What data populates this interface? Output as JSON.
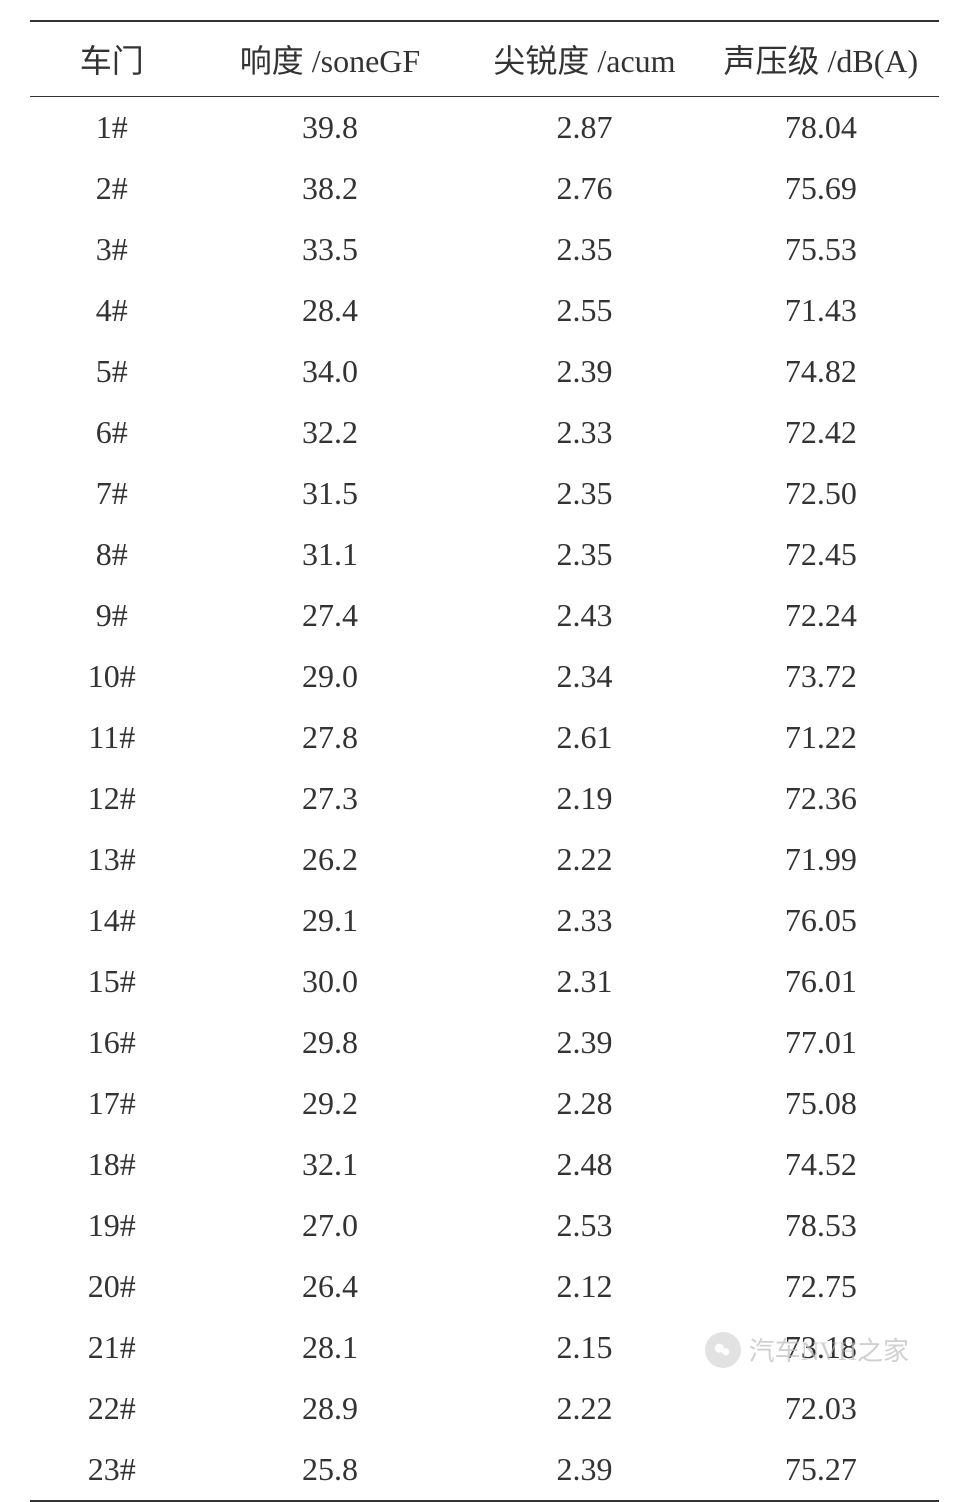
{
  "table": {
    "columns": [
      "车门",
      "响度 /soneGF",
      "尖锐度 /acum",
      "声压级 /dB(A)"
    ],
    "rows": [
      [
        "1#",
        "39.8",
        "2.87",
        "78.04"
      ],
      [
        "2#",
        "38.2",
        "2.76",
        "75.69"
      ],
      [
        "3#",
        "33.5",
        "2.35",
        "75.53"
      ],
      [
        "4#",
        "28.4",
        "2.55",
        "71.43"
      ],
      [
        "5#",
        "34.0",
        "2.39",
        "74.82"
      ],
      [
        "6#",
        "32.2",
        "2.33",
        "72.42"
      ],
      [
        "7#",
        "31.5",
        "2.35",
        "72.50"
      ],
      [
        "8#",
        "31.1",
        "2.35",
        "72.45"
      ],
      [
        "9#",
        "27.4",
        "2.43",
        "72.24"
      ],
      [
        "10#",
        "29.0",
        "2.34",
        "73.72"
      ],
      [
        "11#",
        "27.8",
        "2.61",
        "71.22"
      ],
      [
        "12#",
        "27.3",
        "2.19",
        "72.36"
      ],
      [
        "13#",
        "26.2",
        "2.22",
        "71.99"
      ],
      [
        "14#",
        "29.1",
        "2.33",
        "76.05"
      ],
      [
        "15#",
        "30.0",
        "2.31",
        "76.01"
      ],
      [
        "16#",
        "29.8",
        "2.39",
        "77.01"
      ],
      [
        "17#",
        "29.2",
        "2.28",
        "75.08"
      ],
      [
        "18#",
        "32.1",
        "2.48",
        "74.52"
      ],
      [
        "19#",
        "27.0",
        "2.53",
        "78.53"
      ],
      [
        "20#",
        "26.4",
        "2.12",
        "72.75"
      ],
      [
        "21#",
        "28.1",
        "2.15",
        "73.18"
      ],
      [
        "22#",
        "28.9",
        "2.22",
        "72.03"
      ],
      [
        "23#",
        "25.8",
        "2.39",
        "75.27"
      ]
    ],
    "styling": {
      "border_color": "#333333",
      "text_color": "#333333",
      "background_color": "#ffffff",
      "font_size": 32,
      "header_border_top_width": 2,
      "header_border_bottom_width": 1.5,
      "footer_border_width": 2,
      "column_widths_pct": [
        18,
        30,
        26,
        26
      ],
      "column_align": [
        "center",
        "center",
        "center",
        "center"
      ],
      "row_padding_v": 12
    }
  },
  "watermark": {
    "text": "汽车NVH之家",
    "color": "#bdbdbd",
    "font_size": 26,
    "icon": "wechat-icon"
  }
}
